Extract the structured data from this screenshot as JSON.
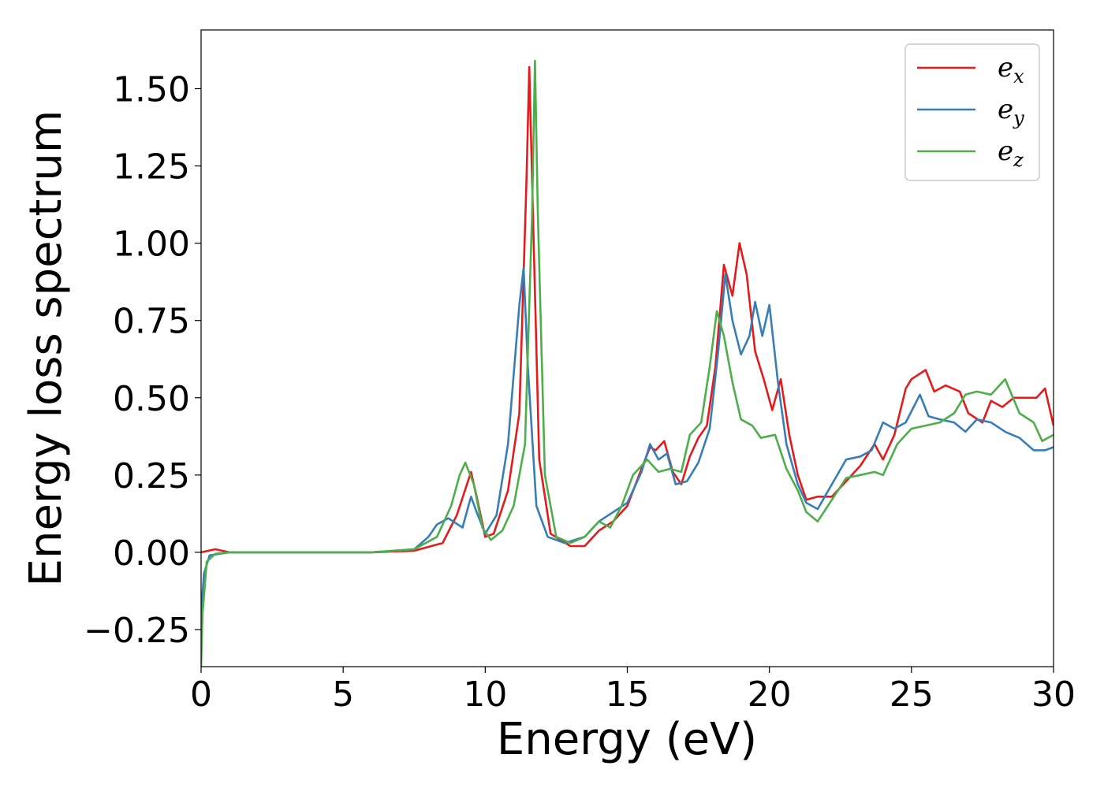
{
  "chart_data": {
    "type": "line",
    "xlabel": "Energy (eV)",
    "ylabel": "Energy loss spectrum",
    "xlim": [
      0,
      30
    ],
    "ylim": [
      -0.37,
      1.69
    ],
    "xticks": [
      0,
      5,
      10,
      15,
      20,
      25,
      30
    ],
    "xtick_labels": [
      "0",
      "5",
      "10",
      "15",
      "20",
      "25",
      "30"
    ],
    "yticks": [
      -0.25,
      0.0,
      0.25,
      0.5,
      0.75,
      1.0,
      1.25,
      1.5
    ],
    "ytick_labels": [
      "−0.25",
      "0.00",
      "0.25",
      "0.50",
      "0.75",
      "1.00",
      "1.25",
      "1.50"
    ],
    "grid": false,
    "legend_position": "top-right",
    "series": [
      {
        "name": "e_x",
        "legend_base": "e",
        "legend_sub": "x",
        "color": "#e41a1c",
        "points": [
          [
            0,
            0
          ],
          [
            0.5,
            0.01
          ],
          [
            1,
            0.0
          ],
          [
            3,
            0.0
          ],
          [
            6,
            0.0
          ],
          [
            7.5,
            0.005
          ],
          [
            8.5,
            0.03
          ],
          [
            9,
            0.12
          ],
          [
            9.5,
            0.26
          ],
          [
            9.7,
            0.18
          ],
          [
            10,
            0.05
          ],
          [
            10.3,
            0.06
          ],
          [
            10.8,
            0.2
          ],
          [
            11.2,
            0.45
          ],
          [
            11.45,
            1.2
          ],
          [
            11.55,
            1.57
          ],
          [
            11.65,
            1.2
          ],
          [
            11.9,
            0.3
          ],
          [
            12.3,
            0.06
          ],
          [
            13,
            0.02
          ],
          [
            13.5,
            0.02
          ],
          [
            14,
            0.07
          ],
          [
            14.5,
            0.1
          ],
          [
            15,
            0.15
          ],
          [
            15.5,
            0.27
          ],
          [
            15.8,
            0.34
          ],
          [
            16,
            0.33
          ],
          [
            16.3,
            0.36
          ],
          [
            16.6,
            0.26
          ],
          [
            16.9,
            0.22
          ],
          [
            17.2,
            0.31
          ],
          [
            17.5,
            0.37
          ],
          [
            17.8,
            0.41
          ],
          [
            18.1,
            0.6
          ],
          [
            18.4,
            0.93
          ],
          [
            18.7,
            0.83
          ],
          [
            18.95,
            1.0
          ],
          [
            19.2,
            0.9
          ],
          [
            19.5,
            0.65
          ],
          [
            19.8,
            0.56
          ],
          [
            20.1,
            0.46
          ],
          [
            20.4,
            0.56
          ],
          [
            20.7,
            0.38
          ],
          [
            21,
            0.25
          ],
          [
            21.3,
            0.17
          ],
          [
            21.7,
            0.18
          ],
          [
            22.2,
            0.18
          ],
          [
            22.7,
            0.23
          ],
          [
            23.2,
            0.28
          ],
          [
            23.7,
            0.35
          ],
          [
            24,
            0.3
          ],
          [
            24.4,
            0.38
          ],
          [
            24.8,
            0.53
          ],
          [
            25,
            0.56
          ],
          [
            25.5,
            0.59
          ],
          [
            25.8,
            0.52
          ],
          [
            26.2,
            0.54
          ],
          [
            26.7,
            0.52
          ],
          [
            27,
            0.45
          ],
          [
            27.5,
            0.42
          ],
          [
            27.8,
            0.49
          ],
          [
            28.2,
            0.47
          ],
          [
            28.6,
            0.5
          ],
          [
            29,
            0.5
          ],
          [
            29.4,
            0.5
          ],
          [
            29.7,
            0.53
          ],
          [
            30,
            0.41
          ]
        ]
      },
      {
        "name": "e_y",
        "legend_base": "e",
        "legend_sub": "y",
        "color": "#377eb8",
        "points": [
          [
            0,
            -0.2
          ],
          [
            0.1,
            -0.07
          ],
          [
            0.3,
            -0.01
          ],
          [
            1,
            0.0
          ],
          [
            3,
            0.0
          ],
          [
            6,
            0.0
          ],
          [
            7.5,
            0.01
          ],
          [
            8,
            0.05
          ],
          [
            8.3,
            0.09
          ],
          [
            8.7,
            0.11
          ],
          [
            9.2,
            0.08
          ],
          [
            9.5,
            0.18
          ],
          [
            9.7,
            0.13
          ],
          [
            10,
            0.06
          ],
          [
            10.4,
            0.12
          ],
          [
            10.8,
            0.35
          ],
          [
            11.2,
            0.8
          ],
          [
            11.35,
            0.92
          ],
          [
            11.5,
            0.6
          ],
          [
            11.8,
            0.15
          ],
          [
            12.2,
            0.05
          ],
          [
            12.8,
            0.03
          ],
          [
            13.5,
            0.05
          ],
          [
            14,
            0.1
          ],
          [
            14.5,
            0.13
          ],
          [
            15,
            0.16
          ],
          [
            15.5,
            0.26
          ],
          [
            15.8,
            0.35
          ],
          [
            16.1,
            0.3
          ],
          [
            16.4,
            0.32
          ],
          [
            16.7,
            0.22
          ],
          [
            17.1,
            0.23
          ],
          [
            17.5,
            0.29
          ],
          [
            17.9,
            0.4
          ],
          [
            18.2,
            0.65
          ],
          [
            18.45,
            0.9
          ],
          [
            18.7,
            0.75
          ],
          [
            19,
            0.64
          ],
          [
            19.3,
            0.7
          ],
          [
            19.5,
            0.81
          ],
          [
            19.75,
            0.7
          ],
          [
            20,
            0.8
          ],
          [
            20.3,
            0.55
          ],
          [
            20.6,
            0.35
          ],
          [
            21,
            0.22
          ],
          [
            21.3,
            0.16
          ],
          [
            21.7,
            0.14
          ],
          [
            22.2,
            0.22
          ],
          [
            22.7,
            0.3
          ],
          [
            23.2,
            0.31
          ],
          [
            23.6,
            0.33
          ],
          [
            24,
            0.42
          ],
          [
            24.4,
            0.4
          ],
          [
            24.8,
            0.42
          ],
          [
            25.3,
            0.51
          ],
          [
            25.6,
            0.44
          ],
          [
            26,
            0.43
          ],
          [
            26.5,
            0.42
          ],
          [
            26.9,
            0.39
          ],
          [
            27.3,
            0.43
          ],
          [
            27.8,
            0.42
          ],
          [
            28.3,
            0.39
          ],
          [
            28.8,
            0.37
          ],
          [
            29.3,
            0.33
          ],
          [
            29.7,
            0.33
          ],
          [
            30,
            0.34
          ]
        ]
      },
      {
        "name": "e_z",
        "legend_base": "e",
        "legend_sub": "z",
        "color": "#4daf4a",
        "points": [
          [
            0,
            -0.37
          ],
          [
            0.05,
            -0.2
          ],
          [
            0.2,
            -0.03
          ],
          [
            0.5,
            -0.005
          ],
          [
            1,
            0.0
          ],
          [
            3,
            0.0
          ],
          [
            6,
            0.0
          ],
          [
            7.5,
            0.01
          ],
          [
            8.3,
            0.05
          ],
          [
            8.8,
            0.15
          ],
          [
            9.1,
            0.25
          ],
          [
            9.3,
            0.29
          ],
          [
            9.6,
            0.22
          ],
          [
            9.9,
            0.08
          ],
          [
            10.2,
            0.04
          ],
          [
            10.6,
            0.07
          ],
          [
            11,
            0.15
          ],
          [
            11.4,
            0.35
          ],
          [
            11.65,
            1.1
          ],
          [
            11.75,
            1.59
          ],
          [
            11.85,
            1.1
          ],
          [
            12.1,
            0.25
          ],
          [
            12.5,
            0.05
          ],
          [
            13,
            0.03
          ],
          [
            13.5,
            0.05
          ],
          [
            14,
            0.1
          ],
          [
            14.4,
            0.08
          ],
          [
            14.8,
            0.15
          ],
          [
            15.2,
            0.25
          ],
          [
            15.7,
            0.3
          ],
          [
            16.1,
            0.26
          ],
          [
            16.5,
            0.27
          ],
          [
            16.9,
            0.26
          ],
          [
            17.2,
            0.38
          ],
          [
            17.6,
            0.42
          ],
          [
            17.9,
            0.6
          ],
          [
            18.15,
            0.78
          ],
          [
            18.4,
            0.7
          ],
          [
            18.7,
            0.55
          ],
          [
            19,
            0.43
          ],
          [
            19.4,
            0.41
          ],
          [
            19.7,
            0.37
          ],
          [
            20.2,
            0.38
          ],
          [
            20.6,
            0.27
          ],
          [
            21,
            0.2
          ],
          [
            21.3,
            0.13
          ],
          [
            21.7,
            0.1
          ],
          [
            22.2,
            0.17
          ],
          [
            22.7,
            0.24
          ],
          [
            23.2,
            0.25
          ],
          [
            23.7,
            0.26
          ],
          [
            24,
            0.25
          ],
          [
            24.5,
            0.35
          ],
          [
            25,
            0.4
          ],
          [
            25.5,
            0.41
          ],
          [
            26,
            0.42
          ],
          [
            26.5,
            0.45
          ],
          [
            26.9,
            0.51
          ],
          [
            27.3,
            0.52
          ],
          [
            27.8,
            0.51
          ],
          [
            28.3,
            0.56
          ],
          [
            28.8,
            0.45
          ],
          [
            29.3,
            0.42
          ],
          [
            29.6,
            0.36
          ],
          [
            30,
            0.38
          ]
        ]
      }
    ]
  }
}
